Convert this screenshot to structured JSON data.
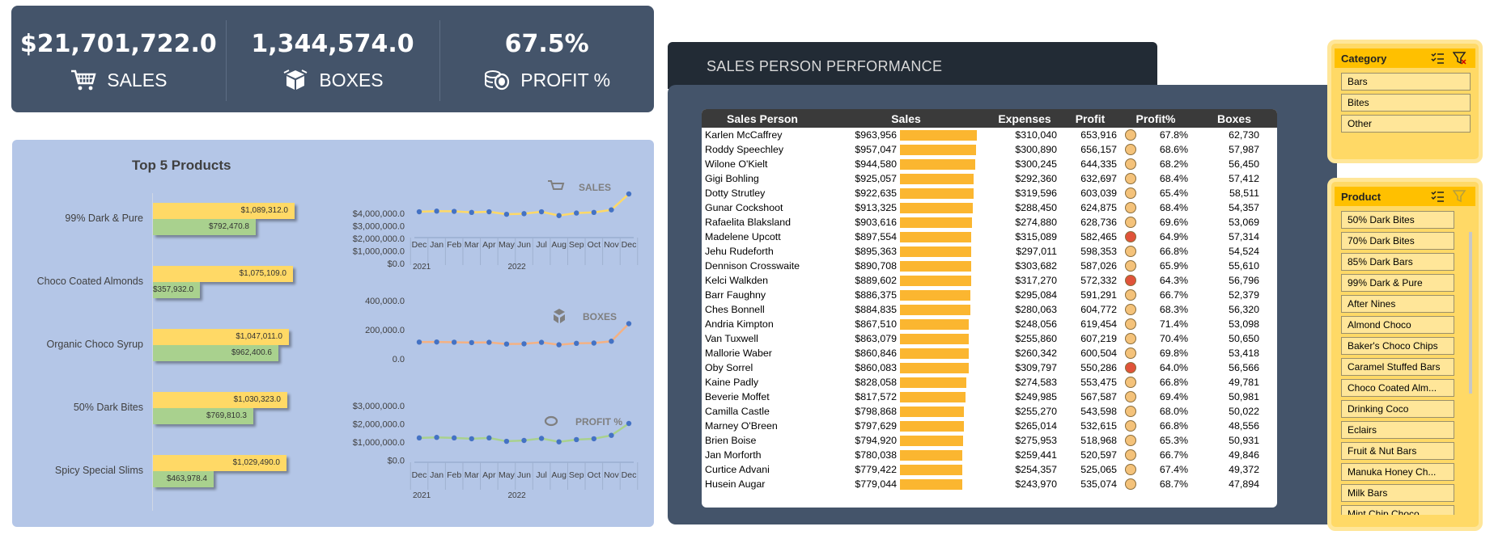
{
  "kpi": {
    "sales": {
      "value": "$21,701,722.0",
      "label": "SALES",
      "icon": "shopping-cart-icon"
    },
    "boxes": {
      "value": "1,344,574.0",
      "label": "BOXES",
      "icon": "boxes-icon"
    },
    "profit": {
      "value": "67.5%",
      "label": "PROFIT %",
      "icon": "coins-icon"
    }
  },
  "top5": {
    "title": "Top 5 Products",
    "products": [
      {
        "name": "99% Dark & Pure",
        "sales": 1089312.0,
        "sales_label": "$1,089,312.0",
        "profit": 792470.8,
        "profit_label": "$792,470.8"
      },
      {
        "name": "Choco Coated Almonds",
        "sales": 1075109.0,
        "sales_label": "$1,075,109.0",
        "profit": 357932.0,
        "profit_label": "$357,932.0"
      },
      {
        "name": "Organic Choco Syrup",
        "sales": 1047011.0,
        "sales_label": "$1,047,011.0",
        "profit": 962400.6,
        "profit_label": "$962,400.6"
      },
      {
        "name": "50% Dark Bites",
        "sales": 1030323.0,
        "sales_label": "$1,030,323.0",
        "profit": 769810.3,
        "profit_label": "$769,810.3"
      },
      {
        "name": "Spicy Special Slims",
        "sales": 1029490.0,
        "sales_label": "$1,029,490.0",
        "profit": 463978.4,
        "profit_label": "$463,978.4"
      }
    ]
  },
  "chart_data": [
    {
      "type": "bar",
      "title": "Top 5 Products",
      "categories": [
        "99% Dark & Pure",
        "Choco Coated Almonds",
        "Organic Choco Syrup",
        "50% Dark Bites",
        "Spicy Special Slims"
      ],
      "series": [
        {
          "values": [
            1089312.0,
            1075109.0,
            1047011.0,
            1030323.0,
            1029490.0
          ],
          "color": "#ffd966"
        },
        {
          "values": [
            792470.8,
            357932.0,
            962400.6,
            769810.3,
            463978.4
          ],
          "color": "#a9d18e"
        }
      ]
    },
    {
      "type": "line",
      "title": "SALES",
      "x": [
        "Dec",
        "Jan",
        "Feb",
        "Mar",
        "Apr",
        "May",
        "Jun",
        "Jul",
        "Aug",
        "Sep",
        "Oct",
        "Nov",
        "Dec"
      ],
      "years": [
        "2021",
        "2022"
      ],
      "ylim": [
        0,
        4000000
      ],
      "yticks": [
        "$4,000,000.0",
        "$3,000,000.0",
        "$2,000,000.0",
        "$1,000,000.0",
        "$0.0"
      ],
      "values": [
        1650000,
        1700000,
        1680000,
        1600000,
        1650000,
        1450000,
        1500000,
        1650000,
        1350000,
        1550000,
        1600000,
        1800000,
        3050000
      ],
      "line_color": "#ffd966"
    },
    {
      "type": "line",
      "title": "BOXES",
      "x": [
        "Dec",
        "Jan",
        "Feb",
        "Mar",
        "Apr",
        "May",
        "Jun",
        "Jul",
        "Aug",
        "Sep",
        "Oct",
        "Nov",
        "Dec"
      ],
      "ylim": [
        0,
        400000
      ],
      "yticks": [
        "400,000.0",
        "200,000.0",
        "0.0"
      ],
      "values": [
        98000,
        99000,
        97000,
        94000,
        96000,
        82000,
        84000,
        96000,
        76000,
        88000,
        90000,
        105000,
        250000
      ],
      "line_color": "#f4b183"
    },
    {
      "type": "line",
      "title": "PROFIT %",
      "x": [
        "Dec",
        "Jan",
        "Feb",
        "Mar",
        "Apr",
        "May",
        "Jun",
        "Jul",
        "Aug",
        "Sep",
        "Oct",
        "Nov",
        "Dec"
      ],
      "years": [
        "2021",
        "2022"
      ],
      "ylim": [
        0,
        3000000
      ],
      "yticks": [
        "$3,000,000.0",
        "$2,000,000.0",
        "$1,000,000.0",
        "$0.0"
      ],
      "values": [
        1150000,
        1180000,
        1150000,
        1100000,
        1150000,
        950000,
        1000000,
        1120000,
        920000,
        1050000,
        1100000,
        1300000,
        2000000
      ],
      "line_color": "#a9d18e"
    }
  ],
  "spp": {
    "title": "SALES PERSON PERFORMANCE",
    "columns": [
      "Sales Person",
      "Sales",
      "Expenses",
      "Profit",
      "Profit%",
      "Boxes"
    ],
    "rows": [
      {
        "name": "Karlen McCaffrey",
        "sales": "$963,956",
        "sales_num": 963956,
        "expenses": "$310,040",
        "profit": "653,916",
        "pct": "67.8%",
        "boxes": "62,730",
        "status": "ok"
      },
      {
        "name": "Roddy Speechley",
        "sales": "$957,047",
        "sales_num": 957047,
        "expenses": "$300,890",
        "profit": "656,157",
        "pct": "68.6%",
        "boxes": "57,987",
        "status": "ok"
      },
      {
        "name": "Wilone O'Kielt",
        "sales": "$944,580",
        "sales_num": 944580,
        "expenses": "$300,245",
        "profit": "644,335",
        "pct": "68.2%",
        "boxes": "56,450",
        "status": "ok"
      },
      {
        "name": "Gigi Bohling",
        "sales": "$925,057",
        "sales_num": 925057,
        "expenses": "$292,360",
        "profit": "632,697",
        "pct": "68.4%",
        "boxes": "57,412",
        "status": "ok"
      },
      {
        "name": "Dotty Strutley",
        "sales": "$922,635",
        "sales_num": 922635,
        "expenses": "$319,596",
        "profit": "603,039",
        "pct": "65.4%",
        "boxes": "58,511",
        "status": "ok"
      },
      {
        "name": "Gunar Cockshoot",
        "sales": "$913,325",
        "sales_num": 913325,
        "expenses": "$288,450",
        "profit": "624,875",
        "pct": "68.4%",
        "boxes": "54,357",
        "status": "ok"
      },
      {
        "name": "Rafaelita Blaksland",
        "sales": "$903,616",
        "sales_num": 903616,
        "expenses": "$274,880",
        "profit": "628,736",
        "pct": "69.6%",
        "boxes": "53,069",
        "status": "ok"
      },
      {
        "name": "Madelene Upcott",
        "sales": "$897,554",
        "sales_num": 897554,
        "expenses": "$315,089",
        "profit": "582,465",
        "pct": "64.9%",
        "boxes": "57,314",
        "status": "low"
      },
      {
        "name": "Jehu Rudeforth",
        "sales": "$895,363",
        "sales_num": 895363,
        "expenses": "$297,011",
        "profit": "598,353",
        "pct": "66.8%",
        "boxes": "54,524",
        "status": "ok"
      },
      {
        "name": "Dennison Crosswaite",
        "sales": "$890,708",
        "sales_num": 890708,
        "expenses": "$303,682",
        "profit": "587,026",
        "pct": "65.9%",
        "boxes": "55,610",
        "status": "ok"
      },
      {
        "name": "Kelci Walkden",
        "sales": "$889,602",
        "sales_num": 889602,
        "expenses": "$317,270",
        "profit": "572,332",
        "pct": "64.3%",
        "boxes": "56,796",
        "status": "low"
      },
      {
        "name": "Barr Faughny",
        "sales": "$886,375",
        "sales_num": 886375,
        "expenses": "$295,084",
        "profit": "591,291",
        "pct": "66.7%",
        "boxes": "52,379",
        "status": "ok"
      },
      {
        "name": "Ches Bonnell",
        "sales": "$884,835",
        "sales_num": 884835,
        "expenses": "$280,063",
        "profit": "604,772",
        "pct": "68.3%",
        "boxes": "56,320",
        "status": "ok"
      },
      {
        "name": "Andria Kimpton",
        "sales": "$867,510",
        "sales_num": 867510,
        "expenses": "$248,056",
        "profit": "619,454",
        "pct": "71.4%",
        "boxes": "53,098",
        "status": "ok"
      },
      {
        "name": "Van Tuxwell",
        "sales": "$863,079",
        "sales_num": 863079,
        "expenses": "$255,860",
        "profit": "607,219",
        "pct": "70.4%",
        "boxes": "50,650",
        "status": "ok"
      },
      {
        "name": "Mallorie Waber",
        "sales": "$860,846",
        "sales_num": 860846,
        "expenses": "$260,342",
        "profit": "600,504",
        "pct": "69.8%",
        "boxes": "53,418",
        "status": "ok"
      },
      {
        "name": "Oby Sorrel",
        "sales": "$860,083",
        "sales_num": 860083,
        "expenses": "$309,797",
        "profit": "550,286",
        "pct": "64.0%",
        "boxes": "56,566",
        "status": "low"
      },
      {
        "name": "Kaine Padly",
        "sales": "$828,058",
        "sales_num": 828058,
        "expenses": "$274,583",
        "profit": "553,475",
        "pct": "66.8%",
        "boxes": "49,781",
        "status": "ok"
      },
      {
        "name": "Beverie Moffet",
        "sales": "$817,572",
        "sales_num": 817572,
        "expenses": "$249,985",
        "profit": "567,587",
        "pct": "69.4%",
        "boxes": "50,981",
        "status": "ok"
      },
      {
        "name": "Camilla Castle",
        "sales": "$798,868",
        "sales_num": 798868,
        "expenses": "$255,270",
        "profit": "543,598",
        "pct": "68.0%",
        "boxes": "50,022",
        "status": "ok"
      },
      {
        "name": "Marney O'Breen",
        "sales": "$797,629",
        "sales_num": 797629,
        "expenses": "$265,014",
        "profit": "532,615",
        "pct": "66.8%",
        "boxes": "48,556",
        "status": "ok"
      },
      {
        "name": "Brien Boise",
        "sales": "$794,920",
        "sales_num": 794920,
        "expenses": "$275,953",
        "profit": "518,968",
        "pct": "65.3%",
        "boxes": "50,931",
        "status": "ok"
      },
      {
        "name": "Jan Morforth",
        "sales": "$780,038",
        "sales_num": 780038,
        "expenses": "$259,441",
        "profit": "520,597",
        "pct": "66.7%",
        "boxes": "49,846",
        "status": "ok"
      },
      {
        "name": "Curtice Advani",
        "sales": "$779,422",
        "sales_num": 779422,
        "expenses": "$254,357",
        "profit": "525,065",
        "pct": "67.4%",
        "boxes": "49,372",
        "status": "ok"
      },
      {
        "name": "Husein Augar",
        "sales": "$779,044",
        "sales_num": 779044,
        "expenses": "$243,970",
        "profit": "535,074",
        "pct": "68.7%",
        "boxes": "47,894",
        "status": "ok"
      }
    ]
  },
  "slicers": {
    "category": {
      "title": "Category",
      "items": [
        "Bars",
        "Bites",
        "Other"
      ]
    },
    "product": {
      "title": "Product",
      "items": [
        "50% Dark Bites",
        "70% Dark Bites",
        "85% Dark Bars",
        "99% Dark & Pure",
        "After Nines",
        "Almond Choco",
        "Baker's Choco Chips",
        "Caramel Stuffed Bars",
        "Choco Coated Alm...",
        "Drinking Coco",
        "Eclairs",
        "Fruit & Nut Bars",
        "Manuka Honey Ch...",
        "Milk Bars",
        "Mint Chip Choco"
      ]
    }
  },
  "colors": {
    "dark_panel": "#44546a",
    "light_panel": "#b4c6e7",
    "bar_orange": "#fbb630",
    "status_ok": "#f4c27a",
    "status_low": "#e0533a"
  }
}
